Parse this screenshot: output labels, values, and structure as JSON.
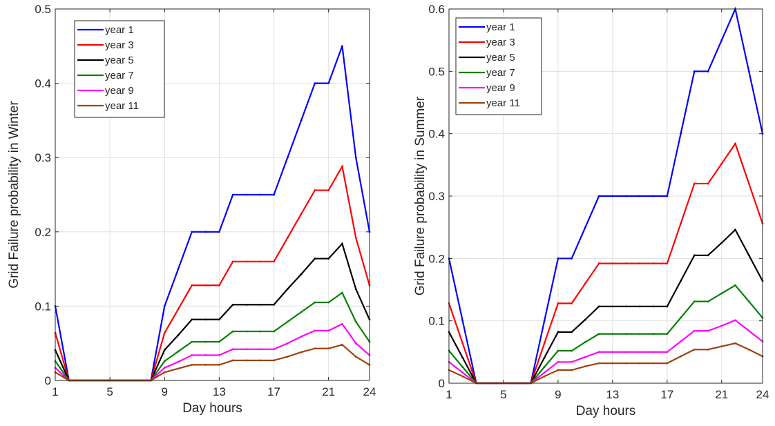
{
  "chart_data": [
    {
      "type": "line",
      "xlabel": "Day hours",
      "ylabel": "Grid Failure probability in Winter",
      "xlim": [
        1,
        24
      ],
      "ylim": [
        0,
        0.5
      ],
      "xticks": [
        1,
        5,
        9,
        13,
        17,
        21,
        24
      ],
      "yticks": [
        0,
        0.1,
        0.2,
        0.3,
        0.4,
        0.5
      ],
      "ytick_labels": [
        "0",
        "0.1",
        "0.2",
        "0.3",
        "0.4",
        "0.5"
      ],
      "grid": true,
      "legend_position": "top-left",
      "x": [
        1,
        2,
        3,
        4,
        5,
        6,
        7,
        8,
        9,
        10,
        11,
        12,
        13,
        14,
        15,
        16,
        17,
        18,
        19,
        20,
        21,
        22,
        23,
        24
      ],
      "series": [
        {
          "name": "year 1",
          "color": "#0000ff",
          "values": [
            0.1,
            0,
            0,
            0,
            0,
            0,
            0,
            0,
            0.1,
            0.15,
            0.2,
            0.2,
            0.2,
            0.25,
            0.25,
            0.25,
            0.25,
            0.3,
            0.35,
            0.4,
            0.4,
            0.45,
            0.3,
            0.2
          ]
        },
        {
          "name": "year 3",
          "color": "#ff0000",
          "values": [
            0.064,
            0,
            0,
            0,
            0,
            0,
            0,
            0,
            0.064,
            0.096,
            0.128,
            0.128,
            0.128,
            0.16,
            0.16,
            0.16,
            0.16,
            0.192,
            0.224,
            0.256,
            0.256,
            0.288,
            0.192,
            0.128
          ]
        },
        {
          "name": "year 5",
          "color": "#000000",
          "values": [
            0.041,
            0,
            0,
            0,
            0,
            0,
            0,
            0,
            0.041,
            0.061,
            0.082,
            0.082,
            0.082,
            0.102,
            0.102,
            0.102,
            0.102,
            0.123,
            0.143,
            0.164,
            0.164,
            0.184,
            0.123,
            0.082
          ]
        },
        {
          "name": "year 7",
          "color": "#008000",
          "values": [
            0.026,
            0,
            0,
            0,
            0,
            0,
            0,
            0,
            0.026,
            0.039,
            0.052,
            0.052,
            0.052,
            0.066,
            0.066,
            0.066,
            0.066,
            0.079,
            0.092,
            0.105,
            0.105,
            0.118,
            0.079,
            0.052
          ]
        },
        {
          "name": "year 9",
          "color": "#ff00ff",
          "values": [
            0.017,
            0,
            0,
            0,
            0,
            0,
            0,
            0,
            0.017,
            0.025,
            0.034,
            0.034,
            0.034,
            0.042,
            0.042,
            0.042,
            0.042,
            0.05,
            0.059,
            0.067,
            0.067,
            0.076,
            0.05,
            0.034
          ]
        },
        {
          "name": "year 11",
          "color": "#a0410d",
          "values": [
            0.011,
            0,
            0,
            0,
            0,
            0,
            0,
            0,
            0.011,
            0.016,
            0.021,
            0.021,
            0.021,
            0.027,
            0.027,
            0.027,
            0.027,
            0.032,
            0.038,
            0.043,
            0.043,
            0.048,
            0.032,
            0.021
          ]
        }
      ]
    },
    {
      "type": "line",
      "xlabel": "Day hours",
      "ylabel": "Grid Failure probability in Summer",
      "xlim": [
        1,
        24
      ],
      "ylim": [
        0,
        0.6
      ],
      "xticks": [
        1,
        5,
        9,
        13,
        17,
        21,
        24
      ],
      "yticks": [
        0,
        0.1,
        0.2,
        0.3,
        0.4,
        0.5,
        0.6
      ],
      "ytick_labels": [
        "0",
        "0.1",
        "0.2",
        "0.3",
        "0.4",
        "0.5",
        "0.6"
      ],
      "grid": true,
      "legend_position": "top-left",
      "x": [
        1,
        2,
        3,
        4,
        5,
        6,
        7,
        8,
        9,
        10,
        11,
        12,
        13,
        14,
        15,
        16,
        17,
        18,
        19,
        20,
        21,
        22,
        23,
        24
      ],
      "series": [
        {
          "name": "year 1",
          "color": "#0000ff",
          "values": [
            0.2,
            0.1,
            0,
            0,
            0,
            0,
            0,
            0.1,
            0.2,
            0.2,
            0.25,
            0.3,
            0.3,
            0.3,
            0.3,
            0.3,
            0.3,
            0.4,
            0.5,
            0.5,
            0.55,
            0.6,
            0.5,
            0.4
          ]
        },
        {
          "name": "year 3",
          "color": "#ff0000",
          "values": [
            0.128,
            0.064,
            0,
            0,
            0,
            0,
            0,
            0.064,
            0.128,
            0.128,
            0.16,
            0.192,
            0.192,
            0.192,
            0.192,
            0.192,
            0.192,
            0.256,
            0.32,
            0.32,
            0.352,
            0.384,
            0.32,
            0.256
          ]
        },
        {
          "name": "year 5",
          "color": "#000000",
          "values": [
            0.082,
            0.041,
            0,
            0,
            0,
            0,
            0,
            0.041,
            0.082,
            0.082,
            0.102,
            0.123,
            0.123,
            0.123,
            0.123,
            0.123,
            0.123,
            0.164,
            0.205,
            0.205,
            0.225,
            0.246,
            0.205,
            0.164
          ]
        },
        {
          "name": "year 7",
          "color": "#008000",
          "values": [
            0.052,
            0.026,
            0,
            0,
            0,
            0,
            0,
            0.026,
            0.052,
            0.052,
            0.066,
            0.079,
            0.079,
            0.079,
            0.079,
            0.079,
            0.079,
            0.105,
            0.131,
            0.131,
            0.144,
            0.157,
            0.131,
            0.105
          ]
        },
        {
          "name": "year 9",
          "color": "#ff00ff",
          "values": [
            0.034,
            0.017,
            0,
            0,
            0,
            0,
            0,
            0.017,
            0.034,
            0.034,
            0.042,
            0.05,
            0.05,
            0.05,
            0.05,
            0.05,
            0.05,
            0.067,
            0.084,
            0.084,
            0.092,
            0.101,
            0.084,
            0.067
          ]
        },
        {
          "name": "year 11",
          "color": "#a0410d",
          "values": [
            0.021,
            0.011,
            0,
            0,
            0,
            0,
            0,
            0.011,
            0.021,
            0.021,
            0.027,
            0.032,
            0.032,
            0.032,
            0.032,
            0.032,
            0.032,
            0.043,
            0.054,
            0.054,
            0.059,
            0.064,
            0.054,
            0.043
          ]
        }
      ]
    }
  ]
}
